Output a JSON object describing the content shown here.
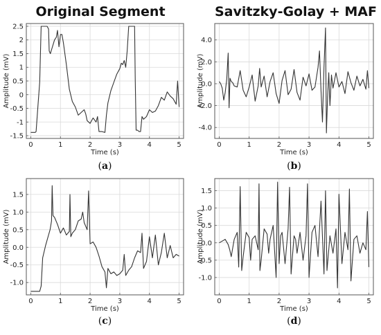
{
  "figure": {
    "col_titles": [
      "Original Segment",
      "Savitzky-Golay + MAF"
    ]
  },
  "chart_data": [
    {
      "id": "a",
      "type": "line",
      "caption_letter": "a",
      "xlabel": "Time (s)",
      "ylabel": "Amplitude (mV)",
      "xlim": [
        -0.15,
        5.15
      ],
      "ylim": [
        -1.6,
        2.6
      ],
      "xticks": [
        0,
        1,
        2,
        3,
        4,
        5
      ],
      "xtick_labels": [
        "0",
        "1",
        "2",
        "3",
        "4",
        "5"
      ],
      "yticks": [
        -1.5,
        -1.0,
        -0.5,
        0.0,
        0.5,
        1.0,
        1.5,
        2.0,
        2.5
      ],
      "ytick_labels": [
        "-1.5",
        "-1",
        "-0.5",
        "0",
        "0.5",
        "1",
        "1.5",
        "2",
        "2.5"
      ],
      "grid": true,
      "series": [
        {
          "color": "#333333",
          "x": [
            0,
            0.15,
            0.18,
            0.25,
            0.3,
            0.35,
            0.45,
            0.55,
            0.6,
            0.62,
            0.66,
            0.8,
            0.86,
            0.9,
            0.95,
            1.0,
            1.05,
            1.1,
            1.2,
            1.3,
            1.4,
            1.5,
            1.6,
            1.7,
            1.8,
            1.85,
            1.9,
            2.0,
            2.05,
            2.1,
            2.2,
            2.25,
            2.3,
            2.4,
            2.5,
            2.55,
            2.6,
            2.7,
            2.8,
            2.9,
            3.0,
            3.05,
            3.1,
            3.15,
            3.2,
            3.25,
            3.3,
            3.4,
            3.45,
            3.5,
            3.52,
            3.55,
            3.6,
            3.65,
            3.7,
            3.75,
            3.8,
            3.9,
            4.0,
            4.1,
            4.2,
            4.3,
            4.4,
            4.5,
            4.6,
            4.7,
            4.8,
            4.9,
            4.95,
            5.0
          ],
          "y": [
            -1.38,
            -1.38,
            -1.35,
            -0.3,
            0.45,
            2.5,
            2.5,
            2.5,
            2.4,
            1.6,
            1.5,
            2.0,
            2.1,
            2.35,
            1.75,
            2.2,
            2.2,
            1.9,
            1.1,
            0.2,
            -0.25,
            -0.45,
            -0.75,
            -0.65,
            -0.55,
            -0.7,
            -0.95,
            -1.05,
            -0.95,
            -0.85,
            -1.0,
            -0.8,
            -1.35,
            -1.35,
            -1.38,
            -0.75,
            -0.3,
            0.15,
            0.45,
            0.75,
            0.95,
            1.15,
            1.1,
            1.25,
            1.0,
            1.6,
            2.5,
            2.5,
            2.5,
            2.5,
            0.6,
            -1.3,
            -1.3,
            -1.35,
            -1.35,
            -0.8,
            -0.9,
            -0.8,
            -0.55,
            -0.65,
            -0.6,
            -0.4,
            -0.1,
            -0.2,
            0.1,
            -0.05,
            -0.15,
            -0.35,
            0.5,
            -0.45
          ]
        }
      ]
    },
    {
      "id": "b",
      "type": "line",
      "caption_letter": "b",
      "xlabel": "Time (s)",
      "ylabel": "Amplitude (mV)",
      "xlim": [
        -0.15,
        5.15
      ],
      "ylim": [
        -5.0,
        5.5
      ],
      "xticks": [
        0,
        1,
        2,
        3,
        4,
        5
      ],
      "xtick_labels": [
        "0",
        "1",
        "2",
        "3",
        "4",
        "5"
      ],
      "yticks": [
        -4.0,
        -2.0,
        0.0,
        2.0,
        4.0
      ],
      "ytick_labels": [
        "-4.0",
        "-2.0",
        "0.0",
        "2.0",
        "4.0"
      ],
      "grid": true,
      "series": [
        {
          "color": "#333333",
          "x": [
            0,
            0.05,
            0.1,
            0.15,
            0.2,
            0.25,
            0.3,
            0.33,
            0.36,
            0.4,
            0.45,
            0.5,
            0.6,
            0.7,
            0.8,
            0.9,
            1.0,
            1.1,
            1.2,
            1.3,
            1.35,
            1.4,
            1.5,
            1.6,
            1.7,
            1.8,
            1.9,
            2.0,
            2.1,
            2.2,
            2.3,
            2.4,
            2.5,
            2.6,
            2.7,
            2.8,
            2.9,
            3.0,
            3.1,
            3.2,
            3.3,
            3.35,
            3.4,
            3.45,
            3.5,
            3.55,
            3.58,
            3.62,
            3.66,
            3.7,
            3.75,
            3.8,
            3.9,
            4.0,
            4.1,
            4.2,
            4.3,
            4.4,
            4.5,
            4.6,
            4.7,
            4.8,
            4.9,
            4.95,
            5.0
          ],
          "y": [
            0.2,
            0.0,
            -0.4,
            -1.5,
            -0.8,
            0.4,
            2.8,
            -2.2,
            0.5,
            0.2,
            0.1,
            -0.2,
            -0.3,
            1.2,
            -0.6,
            -1.2,
            -0.3,
            0.8,
            -1.6,
            -0.2,
            1.4,
            -0.3,
            0.7,
            -1.2,
            0.2,
            1.0,
            -0.9,
            -1.8,
            0.3,
            1.2,
            -1.0,
            -0.5,
            1.3,
            -0.8,
            -1.5,
            0.6,
            -0.2,
            0.9,
            -0.6,
            -0.3,
            1.5,
            3.0,
            -0.6,
            -3.5,
            1.5,
            5.1,
            -4.5,
            -1.2,
            1.0,
            -2.0,
            0.8,
            -0.4,
            1.0,
            -0.3,
            0.2,
            -0.9,
            1.1,
            0.1,
            -0.6,
            0.7,
            -0.2,
            0.4,
            -0.5,
            1.2,
            -0.4
          ]
        }
      ]
    },
    {
      "id": "c",
      "type": "line",
      "caption_letter": "c",
      "xlabel": "Time (s)",
      "ylabel": "Amplitude (mV)",
      "xlim": [
        -0.15,
        5.15
      ],
      "ylim": [
        -1.35,
        1.95
      ],
      "xticks": [
        0,
        1,
        2,
        3,
        4,
        5
      ],
      "xtick_labels": [
        "0",
        "1",
        "2",
        "3",
        "4",
        "5"
      ],
      "yticks": [
        -1.0,
        -0.5,
        0.0,
        0.5,
        1.0,
        1.5
      ],
      "ytick_labels": [
        "-1.0",
        "-0.5",
        "0.0",
        "0.5",
        "1.0",
        "1.5"
      ],
      "grid": true,
      "series": [
        {
          "color": "#333333",
          "x": [
            0,
            0.3,
            0.35,
            0.4,
            0.5,
            0.6,
            0.65,
            0.7,
            0.72,
            0.75,
            0.8,
            0.9,
            1.0,
            1.1,
            1.2,
            1.3,
            1.32,
            1.35,
            1.4,
            1.5,
            1.6,
            1.7,
            1.75,
            1.8,
            1.9,
            1.95,
            2.0,
            2.1,
            2.2,
            2.3,
            2.4,
            2.5,
            2.55,
            2.6,
            2.7,
            2.8,
            2.9,
            3.0,
            3.1,
            3.15,
            3.2,
            3.3,
            3.4,
            3.5,
            3.6,
            3.7,
            3.75,
            3.8,
            3.9,
            4.0,
            4.1,
            4.2,
            4.3,
            4.4,
            4.5,
            4.6,
            4.7,
            4.8,
            4.9,
            5.0
          ],
          "y": [
            -1.25,
            -1.25,
            -1.1,
            -0.3,
            0.05,
            0.35,
            0.5,
            0.75,
            1.75,
            0.9,
            0.85,
            0.65,
            0.4,
            0.55,
            0.35,
            0.45,
            1.5,
            0.3,
            0.4,
            0.5,
            0.75,
            0.8,
            1.0,
            0.7,
            0.5,
            1.6,
            0.1,
            0.15,
            0.0,
            -0.25,
            -0.55,
            -0.7,
            -1.15,
            -0.6,
            -0.75,
            -0.7,
            -0.8,
            -0.75,
            -0.65,
            -0.2,
            -0.8,
            -0.65,
            -0.55,
            -0.3,
            -0.1,
            -0.15,
            0.4,
            -0.6,
            -0.4,
            0.3,
            -0.3,
            0.35,
            -0.5,
            -0.15,
            0.4,
            -0.3,
            0.05,
            -0.3,
            -0.2,
            -0.25
          ]
        }
      ]
    },
    {
      "id": "d",
      "type": "line",
      "caption_letter": "d",
      "xlabel": "Time (s)",
      "ylabel": "Amplitude (mV)",
      "xlim": [
        -0.15,
        5.15
      ],
      "ylim": [
        -1.5,
        1.85
      ],
      "xticks": [
        0,
        1,
        2,
        3,
        4,
        5
      ],
      "xtick_labels": [
        "0",
        "1",
        "2",
        "3",
        "4",
        "5"
      ],
      "yticks": [
        -1.0,
        -0.5,
        0.0,
        0.5,
        1.0,
        1.5
      ],
      "ytick_labels": [
        "-1.0",
        "-0.5",
        "0.0",
        "0.5",
        "1.0",
        "1.5"
      ],
      "grid": true,
      "series": [
        {
          "color": "#333333",
          "x": [
            0,
            0.1,
            0.2,
            0.3,
            0.35,
            0.4,
            0.5,
            0.6,
            0.65,
            0.7,
            0.75,
            0.8,
            0.9,
            1.0,
            1.05,
            1.1,
            1.2,
            1.3,
            1.33,
            1.36,
            1.4,
            1.5,
            1.6,
            1.65,
            1.7,
            1.8,
            1.9,
            1.95,
            2.0,
            2.05,
            2.1,
            2.2,
            2.3,
            2.35,
            2.4,
            2.5,
            2.55,
            2.6,
            2.7,
            2.8,
            2.9,
            2.95,
            3.0,
            3.1,
            3.2,
            3.3,
            3.4,
            3.5,
            3.55,
            3.6,
            3.7,
            3.8,
            3.9,
            3.95,
            4.0,
            4.1,
            4.2,
            4.3,
            4.35,
            4.4,
            4.5,
            4.6,
            4.7,
            4.8,
            4.9,
            4.95,
            5.0
          ],
          "y": [
            0.0,
            0.05,
            0.1,
            -0.05,
            -0.2,
            -0.4,
            0.1,
            0.3,
            -0.7,
            1.62,
            -0.8,
            -0.4,
            0.3,
            0.15,
            -0.5,
            0.1,
            0.2,
            -0.2,
            1.7,
            -0.8,
            -0.5,
            0.4,
            0.25,
            -0.3,
            0.1,
            0.5,
            -1.0,
            1.75,
            -0.6,
            0.2,
            0.3,
            -0.6,
            0.4,
            1.6,
            -0.9,
            0.2,
            0.1,
            -0.3,
            0.3,
            -0.5,
            0.2,
            1.7,
            -1.0,
            0.3,
            0.5,
            -0.4,
            1.2,
            -0.9,
            1.5,
            -0.8,
            0.2,
            -0.3,
            0.4,
            -1.3,
            1.4,
            -0.6,
            0.3,
            -0.2,
            1.55,
            -1.1,
            0.1,
            0.2,
            -0.3,
            0.0,
            -0.2,
            0.9,
            -0.7
          ]
        }
      ]
    }
  ]
}
